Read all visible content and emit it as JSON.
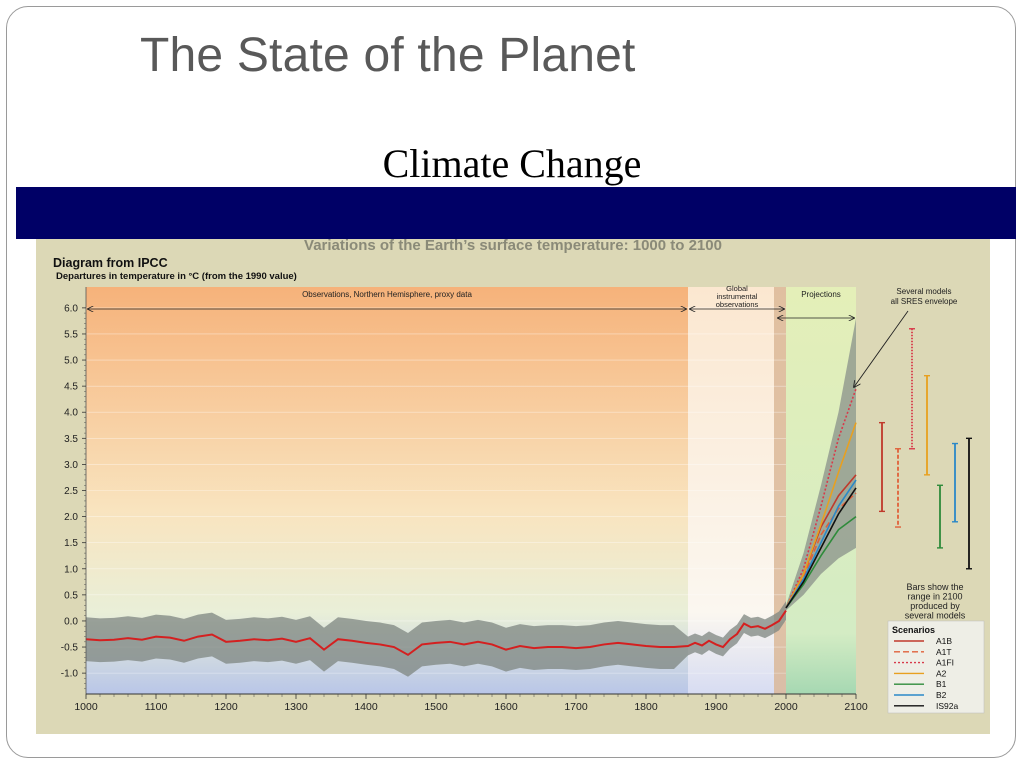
{
  "slide": {
    "title": "The State of the Planet",
    "subtitle": "Climate Change"
  },
  "chart_data": {
    "type": "line",
    "title": "Variations of the Earth’s surface temperature: 1000 to 2100",
    "source_label": "Diagram from IPCC",
    "ylabel": "Departures in temperature in °C (from the 1990 value)",
    "xlabel": "",
    "xlim": [
      1000,
      2100
    ],
    "ylim": [
      -1.0,
      6.0
    ],
    "x_ticks": [
      "1000",
      "1100",
      "1200",
      "1300",
      "1400",
      "1500",
      "1600",
      "1700",
      "1800",
      "1900",
      "2000",
      "2100"
    ],
    "y_ticks": [
      "6.0",
      "5.5",
      "5.0",
      "4.5",
      "4.0",
      "3.5",
      "3.0",
      "2.5",
      "2.0",
      "1.5",
      "1.0",
      "0.5",
      "0.0",
      "-0.5",
      "-1.0"
    ],
    "periods": [
      {
        "label": "Observations, Northern Hemisphere, proxy data",
        "x": [
          1000,
          1860
        ]
      },
      {
        "label": "Global instrumental observations",
        "x": [
          1860,
          2000
        ]
      },
      {
        "label": "Projections",
        "x": [
          2000,
          2100
        ]
      }
    ],
    "annotations": {
      "models_label": "Several models all SRES envelope",
      "bars_label": "Bars show the range in 2100 produced by several models"
    },
    "observed": {
      "name": "",
      "color": "#d42020",
      "x": [
        1000,
        1020,
        1040,
        1060,
        1080,
        1100,
        1120,
        1140,
        1160,
        1180,
        1200,
        1220,
        1240,
        1260,
        1280,
        1300,
        1320,
        1340,
        1360,
        1380,
        1400,
        1420,
        1440,
        1460,
        1480,
        1500,
        1520,
        1540,
        1560,
        1580,
        1600,
        1620,
        1640,
        1660,
        1680,
        1700,
        1720,
        1740,
        1760,
        1780,
        1800,
        1820,
        1840,
        1860,
        1870,
        1880,
        1890,
        1900,
        1910,
        1920,
        1930,
        1940,
        1950,
        1960,
        1970,
        1980,
        1990,
        2000
      ],
      "y": [
        -0.35,
        -0.37,
        -0.36,
        -0.33,
        -0.36,
        -0.3,
        -0.32,
        -0.38,
        -0.3,
        -0.26,
        -0.4,
        -0.38,
        -0.35,
        -0.37,
        -0.34,
        -0.4,
        -0.33,
        -0.55,
        -0.35,
        -0.38,
        -0.42,
        -0.45,
        -0.5,
        -0.65,
        -0.45,
        -0.42,
        -0.4,
        -0.45,
        -0.4,
        -0.45,
        -0.55,
        -0.48,
        -0.52,
        -0.5,
        -0.5,
        -0.52,
        -0.5,
        -0.45,
        -0.42,
        -0.45,
        -0.48,
        -0.5,
        -0.5,
        -0.48,
        -0.42,
        -0.47,
        -0.38,
        -0.45,
        -0.5,
        -0.35,
        -0.25,
        -0.05,
        -0.12,
        -0.1,
        -0.15,
        -0.08,
        0,
        0.2
      ]
    },
    "scenarios_title": "Scenarios",
    "series": [
      {
        "name": "A1B",
        "color": "#c0392b",
        "dash": "",
        "x": [
          2000,
          2025,
          2050,
          2075,
          2100
        ],
        "y": [
          0.25,
          0.9,
          1.8,
          2.4,
          2.8
        ]
      },
      {
        "name": "A1T",
        "color": "#e0603a",
        "dash": "6,3",
        "x": [
          2000,
          2025,
          2050,
          2075,
          2100
        ],
        "y": [
          0.25,
          0.85,
          1.65,
          2.15,
          2.45
        ]
      },
      {
        "name": "A1FI",
        "color": "#d83a4a",
        "dash": "2,2",
        "x": [
          2000,
          2025,
          2050,
          2075,
          2100
        ],
        "y": [
          0.25,
          1.0,
          2.2,
          3.5,
          4.45
        ]
      },
      {
        "name": "A2",
        "color": "#e8a020",
        "dash": "",
        "x": [
          2000,
          2025,
          2050,
          2075,
          2100
        ],
        "y": [
          0.25,
          0.9,
          1.85,
          2.85,
          3.8
        ]
      },
      {
        "name": "B1",
        "color": "#2e8b3a",
        "dash": "",
        "x": [
          2000,
          2025,
          2050,
          2075,
          2100
        ],
        "y": [
          0.25,
          0.7,
          1.25,
          1.75,
          2.0
        ]
      },
      {
        "name": "B2",
        "color": "#2a88c8",
        "dash": "",
        "x": [
          2000,
          2025,
          2050,
          2075,
          2100
        ],
        "y": [
          0.25,
          0.8,
          1.5,
          2.2,
          2.7
        ]
      },
      {
        "name": "IS92a",
        "color": "#111111",
        "dash": "",
        "x": [
          2000,
          2025,
          2050,
          2075,
          2100
        ],
        "y": [
          0.25,
          0.75,
          1.4,
          2.05,
          2.55
        ]
      }
    ],
    "envelope": {
      "x": [
        2000,
        2025,
        2050,
        2075,
        2100
      ],
      "upper": [
        0.3,
        1.3,
        2.6,
        4.0,
        5.8
      ],
      "lower": [
        0.2,
        0.5,
        0.9,
        1.2,
        1.4
      ]
    },
    "range_bars": [
      {
        "name": "A1B",
        "color": "#c0392b",
        "low": 2.1,
        "high": 3.8,
        "style": "solid"
      },
      {
        "name": "A1T",
        "color": "#e0603a",
        "low": 1.8,
        "high": 3.3,
        "style": "dashed"
      },
      {
        "name": "A1FI",
        "color": "#d83a4a",
        "low": 3.3,
        "high": 5.6,
        "style": "dotted"
      },
      {
        "name": "A2",
        "color": "#e8a020",
        "low": 2.8,
        "high": 4.7,
        "style": "solid"
      },
      {
        "name": "B1",
        "color": "#2e8b3a",
        "low": 1.4,
        "high": 2.6,
        "style": "solid"
      },
      {
        "name": "B2",
        "color": "#2a88c8",
        "low": 1.9,
        "high": 3.4,
        "style": "solid"
      },
      {
        "name": "IS92a",
        "color": "#111111",
        "low": 1.0,
        "high": 3.5,
        "style": "solid"
      }
    ]
  }
}
